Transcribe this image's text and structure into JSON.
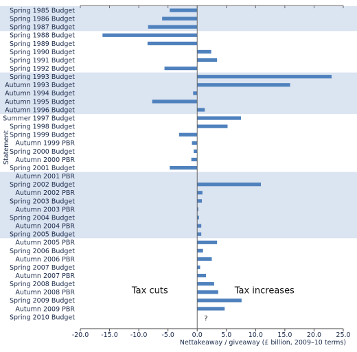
{
  "chart_data": {
    "type": "bar",
    "orientation": "horizontal",
    "title": "",
    "xlabel": "Nettakeaway / giveaway (£ billion, 2009–10 terms)",
    "ylabel": "Statement",
    "xlim": [
      -20,
      25
    ],
    "xticks": [
      -20,
      -15,
      -10,
      -5,
      0,
      5,
      10,
      15,
      20,
      25
    ],
    "xtick_labels": [
      "-20.0",
      "-15.0",
      "-10.0",
      "-5.0",
      "0.0",
      "5.0",
      "10.0",
      "15.0",
      "20.0",
      "25.0"
    ],
    "grid": false,
    "bar_color": "#4f81bd",
    "band_color": "#dbe4f1",
    "categories": [
      "Spring 1985 Budget",
      "Spring 1986 Budget",
      "Spring 1987 Budget",
      "Spring 1988 Budget",
      "Spring 1989 Budget",
      "Spring 1990 Budget",
      "Spring 1991 Budget",
      "Spring 1992 Budget",
      "Spring 1993 Budget",
      "Autumn 1993 Budget",
      "Autumn 1994 Budget",
      "Autumn 1995 Budget",
      "Autumn 1996 Budget",
      "Summer 1997 Budget",
      "Spring 1998 Budget",
      "Spring 1999 Budget",
      "Autumn 1999 PBR",
      "Spring 2000 Budget",
      "Autumn 2000 PBR",
      "Spring 2001 Budget",
      "Autumn 2001 PBR",
      "Spring 2002 Budget",
      "Autumn 2002 PBR",
      "Spring 2003 Budget",
      "Autumn 2003 PBR",
      "Spring 2004 Budget",
      "Autumn 2004 PBR",
      "Spring 2005 Budget",
      "Autumn 2005 PBR",
      "Spring 2006 Budget",
      "Autumn 2006 PBR",
      "Spring 2007 Budget",
      "Autumn 2007 PBR",
      "Spring 2008 Budget",
      "Autumn 2008 PBR",
      "Spring 2009 Budget",
      "Autumn 2009 PBR",
      "Spring 2010 Budget"
    ],
    "values": [
      -4.7,
      -6.0,
      -8.4,
      -16.2,
      -8.5,
      2.4,
      3.4,
      -5.6,
      23.0,
      15.9,
      -0.7,
      -7.7,
      1.3,
      7.5,
      5.2,
      -3.1,
      -0.9,
      -0.6,
      -1.0,
      -4.7,
      0.0,
      10.9,
      0.9,
      0.8,
      0.2,
      0.3,
      0.7,
      0.7,
      3.4,
      1.0,
      2.5,
      0.5,
      1.5,
      2.9,
      3.6,
      7.6,
      4.7,
      0.0
    ],
    "shaded_bands": [
      [
        0,
        2
      ],
      [
        8,
        12
      ],
      [
        20,
        27
      ]
    ],
    "annotations": [
      {
        "text": "Tax cuts",
        "x": -11.2,
        "row": 33.8
      },
      {
        "text": "Tax increases",
        "x": 6.4,
        "row": 33.8
      },
      {
        "text": "?",
        "x": 1.2,
        "row": 37
      }
    ]
  }
}
